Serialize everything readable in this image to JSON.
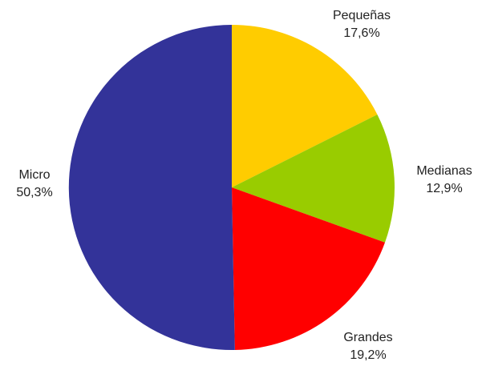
{
  "chart_data": {
    "type": "pie",
    "title": "",
    "start": "top",
    "direction": "clockwise",
    "slices": [
      {
        "label": "Pequeñas",
        "value": 17.6,
        "value_text": "17,6%",
        "color": "#FFCC00"
      },
      {
        "label": "Medianas",
        "value": 12.9,
        "value_text": "12,9%",
        "color": "#99CC00"
      },
      {
        "label": "Grandes",
        "value": 19.2,
        "value_text": "19,2%",
        "color": "#FF0000"
      },
      {
        "label": "Micro",
        "value": 50.3,
        "value_text": "50,3%",
        "color": "#333399"
      }
    ]
  }
}
